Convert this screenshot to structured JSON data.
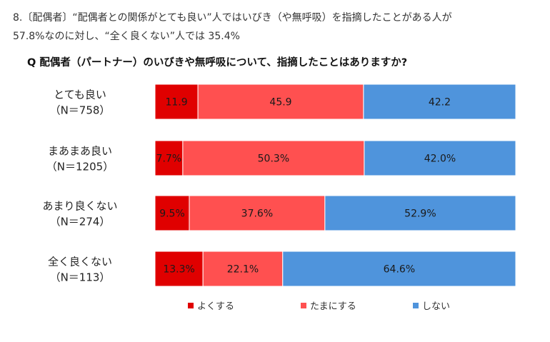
{
  "heading": {
    "line1": "8.〔配偶者〕“配偶者との関係がとても良い”人ではいびき（や無呼吸）を指摘したことがある人が",
    "line2": "57.8%なのに対し、“全く良くない”人では 35.4%"
  },
  "question": "Q 配偶者（パートナー）のいびきや無呼吸について、指摘したことはありますか?",
  "chart_data": {
    "type": "bar",
    "orientation": "horizontal",
    "stacked": true,
    "normalized_percent": true,
    "categories": [
      {
        "label": "とても良い",
        "n": "（N＝758）"
      },
      {
        "label": "まあまあ良い",
        "n": "（N＝1205）"
      },
      {
        "label": "あまり良くない",
        "n": "（N＝274）"
      },
      {
        "label": "全く良くない",
        "n": "（N＝113）"
      }
    ],
    "series": [
      {
        "name": "よくする",
        "color": "#e00000",
        "values": [
          11.9,
          7.7,
          9.5,
          13.3
        ],
        "labels": [
          "11.9",
          "7.7%",
          "9.5%",
          "13.3%"
        ]
      },
      {
        "name": "たまにする",
        "color": "#ff5050",
        "values": [
          45.9,
          50.3,
          37.6,
          22.1
        ],
        "labels": [
          "45.9",
          "50.3%",
          "37.6%",
          "22.1%"
        ]
      },
      {
        "name": "しない",
        "color": "#4f94dc",
        "values": [
          42.2,
          42.0,
          52.9,
          64.6
        ],
        "labels": [
          "42.2",
          "42.0%",
          "52.9%",
          "64.6%"
        ]
      }
    ],
    "xlim": [
      0,
      100
    ],
    "grid": false,
    "legend_position": "bottom"
  }
}
